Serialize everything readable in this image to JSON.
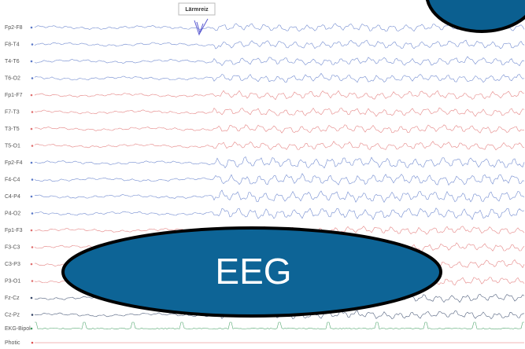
{
  "annotation": "Lärmreiz",
  "overlay": {
    "title": "EEG"
  },
  "channels": [
    {
      "label": "Fp2-F8",
      "color": "#5a78c8"
    },
    {
      "label": "F8-T4",
      "color": "#5a78c8"
    },
    {
      "label": "T4-T6",
      "color": "#5a78c8"
    },
    {
      "label": "T6-O2",
      "color": "#5a78c8"
    },
    {
      "label": "Fp1-F7",
      "color": "#e07070"
    },
    {
      "label": "F7-T3",
      "color": "#e07070"
    },
    {
      "label": "T3-T5",
      "color": "#e07070"
    },
    {
      "label": "T5-O1",
      "color": "#e07070"
    },
    {
      "label": "Fp2-F4",
      "color": "#5a78c8"
    },
    {
      "label": "F4-C4",
      "color": "#5a78c8"
    },
    {
      "label": "C4-P4",
      "color": "#5a78c8"
    },
    {
      "label": "P4-O2",
      "color": "#5a78c8"
    },
    {
      "label": "Fp1-F3",
      "color": "#e07070"
    },
    {
      "label": "F3-C3",
      "color": "#e07070"
    },
    {
      "label": "C3-P3",
      "color": "#e07070"
    },
    {
      "label": "P3-O1",
      "color": "#e07070"
    },
    {
      "label": "Fz-Cz",
      "color": "#334466"
    },
    {
      "label": "Cz-Pz",
      "color": "#334466"
    },
    {
      "label": "EKG-Bipol",
      "color": "#3a9a5a"
    },
    {
      "label": "Photic",
      "color": "#e05050"
    }
  ]
}
